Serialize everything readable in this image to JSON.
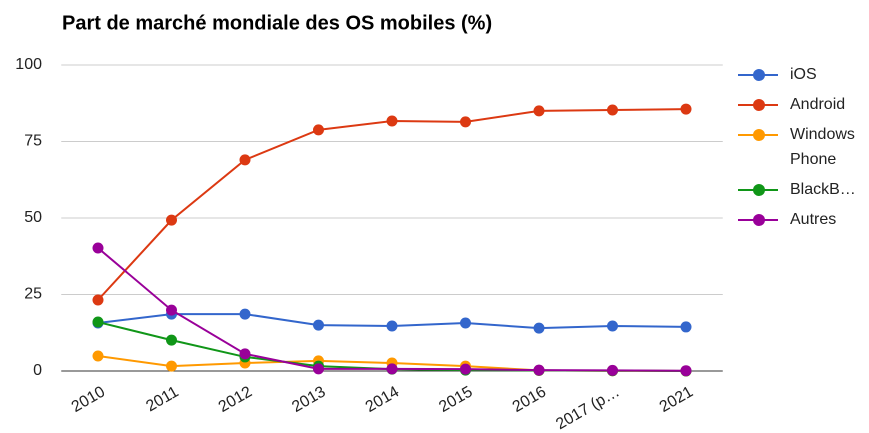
{
  "chart_data": {
    "type": "line",
    "title": "Part de marché mondiale des OS mobiles (%)",
    "categories": [
      "2010",
      "2011",
      "2012",
      "2013",
      "2014",
      "2015",
      "2016",
      "2017 (p…",
      "2021"
    ],
    "series": [
      {
        "name": "iOS",
        "color": "#3366cc",
        "values": [
          15.7,
          18.6,
          18.6,
          15,
          14.7,
          15.7,
          14,
          14.7,
          14.4
        ]
      },
      {
        "name": "Android",
        "color": "#dc3912",
        "values": [
          23.2,
          49.3,
          69,
          78.8,
          81.7,
          81.4,
          85,
          85.3,
          85.6
        ]
      },
      {
        "name": "Windows Phone",
        "color": "#ff9900",
        "values": [
          4.9,
          1.6,
          2.6,
          3.3,
          2.6,
          1.6,
          0.2,
          0.1,
          0
        ]
      },
      {
        "name": "BlackB…",
        "color": "#109618",
        "values": [
          16,
          10.1,
          4.6,
          1.6,
          0.6,
          0.3,
          0.2,
          0.1,
          0
        ]
      },
      {
        "name": "Autres",
        "color": "#990099",
        "values": [
          40.2,
          19.9,
          5.6,
          0.7,
          0.7,
          0.6,
          0.3,
          0.2,
          0.1
        ]
      }
    ],
    "ylim": [
      0,
      100
    ],
    "yticks": [
      0,
      25,
      50,
      75,
      100
    ],
    "grid": true,
    "legend": "right"
  }
}
